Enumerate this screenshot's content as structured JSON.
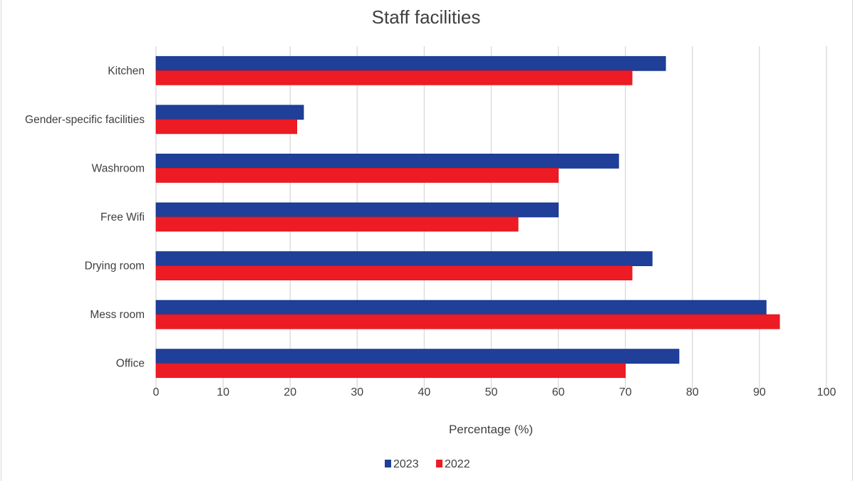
{
  "chart_data": {
    "type": "bar",
    "orientation": "horizontal",
    "title": "Staff facilities",
    "xlabel": "Percentage (%)",
    "ylabel": "",
    "xlim": [
      0,
      100
    ],
    "xticks": [
      0,
      10,
      20,
      30,
      40,
      50,
      60,
      70,
      80,
      90,
      100
    ],
    "grid": true,
    "legend_position": "bottom",
    "categories": [
      "Kitchen",
      "Gender-specific facilities",
      "Washroom",
      "Free Wifi",
      "Drying room",
      "Mess room",
      "Office"
    ],
    "series": [
      {
        "name": "2023",
        "color": "#1f3f98",
        "values": [
          76,
          22,
          69,
          60,
          74,
          91,
          78
        ]
      },
      {
        "name": "2022",
        "color": "#ed1c24",
        "values": [
          71,
          21,
          60,
          54,
          71,
          93,
          70
        ]
      }
    ]
  }
}
